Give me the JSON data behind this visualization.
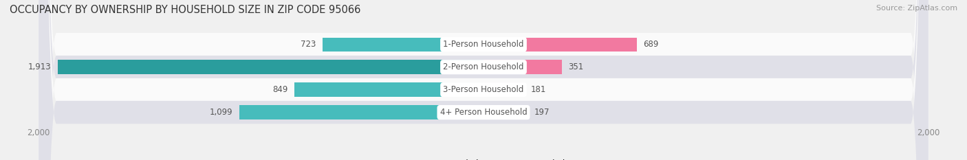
{
  "title": "OCCUPANCY BY OWNERSHIP BY HOUSEHOLD SIZE IN ZIP CODE 95066",
  "source": "Source: ZipAtlas.com",
  "categories": [
    "1-Person Household",
    "2-Person Household",
    "3-Person Household",
    "4+ Person Household"
  ],
  "owner_values": [
    723,
    1913,
    849,
    1099
  ],
  "renter_values": [
    689,
    351,
    181,
    197
  ],
  "owner_color": "#47BCBC",
  "renter_color": "#F279A0",
  "owner_color_dark": "#2A9D9D",
  "xlim": 2000,
  "bar_height": 0.62,
  "background_color": "#f0f0f0",
  "row_bg_light": "#fafafa",
  "row_bg_dark": "#e0e0e8",
  "title_fontsize": 10.5,
  "label_fontsize": 8.5,
  "value_fontsize": 8.5,
  "tick_fontsize": 8.5,
  "legend_fontsize": 8.5,
  "source_fontsize": 8
}
